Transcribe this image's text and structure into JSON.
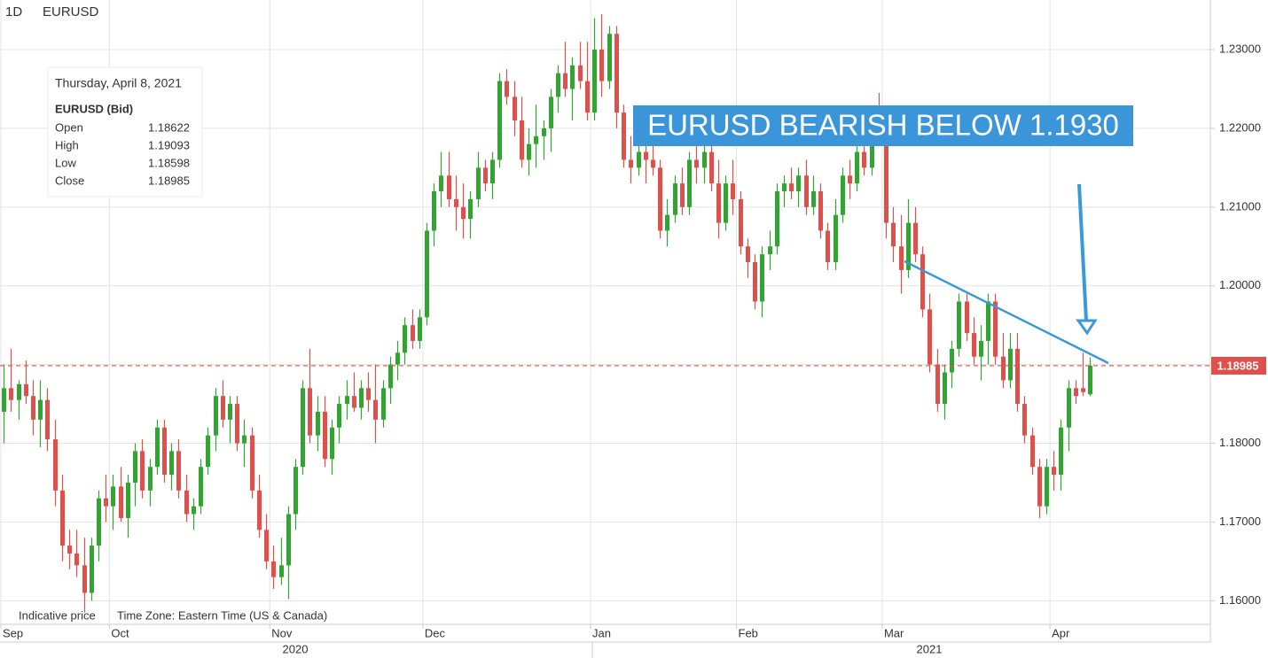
{
  "chart_data": {
    "type": "candlestick",
    "timeframe": "1D",
    "symbol": "EURUSD",
    "annotation": "EURUSD BEARISH BELOW 1.1930",
    "footer": [
      "Indicative price",
      "Time Zone: Eastern Time (US & Canada)"
    ],
    "info_box": {
      "date": "Thursday, April 8, 2021",
      "symbol": "EURUSD (Bid)",
      "rows": [
        [
          "Open",
          "1.18622"
        ],
        [
          "High",
          "1.19093"
        ],
        [
          "Low",
          "1.18598"
        ],
        [
          "Close",
          "1.18985"
        ]
      ]
    },
    "up_color": "#30a530",
    "down_color": "#e0504a",
    "ylim": [
      1.157,
      1.2363
    ],
    "yticks": [
      {
        "value": 1.16,
        "label": "1.16000"
      },
      {
        "value": 1.17,
        "label": "1.17000"
      },
      {
        "value": 1.18,
        "label": "1.18000"
      },
      {
        "value": 1.19,
        "label": "1.19000"
      },
      {
        "value": 1.2,
        "label": "1.20000"
      },
      {
        "value": 1.21,
        "label": "1.21000"
      },
      {
        "value": 1.22,
        "label": "1.22000"
      },
      {
        "value": 1.23,
        "label": "1.23000"
      }
    ],
    "xlim": [
      -0.5,
      165.5
    ],
    "xticks": [
      {
        "value": -0.5,
        "label": "Sep"
      },
      {
        "value": 14.5,
        "label": "Oct"
      },
      {
        "value": 36.5,
        "label": "Nov"
      },
      {
        "value": 57.5,
        "label": "Dec"
      },
      {
        "value": 80.5,
        "label": "Jan"
      },
      {
        "value": 100.5,
        "label": "Feb"
      },
      {
        "value": 120.5,
        "label": "Mar"
      },
      {
        "value": 143.5,
        "label": "Apr"
      }
    ],
    "years": [
      "2020",
      "2021"
    ],
    "grid": true,
    "candles": [
      [
        1.184,
        1.19,
        1.18,
        1.187
      ],
      [
        1.187,
        1.192,
        1.184,
        1.1855
      ],
      [
        1.1855,
        1.188,
        1.183,
        1.1875
      ],
      [
        1.1875,
        1.1905,
        1.185,
        1.186
      ],
      [
        1.186,
        1.188,
        1.181,
        1.183
      ],
      [
        1.183,
        1.188,
        1.1795,
        1.1855
      ],
      [
        1.1855,
        1.187,
        1.179,
        1.1805
      ],
      [
        1.1805,
        1.183,
        1.172,
        1.174
      ],
      [
        1.174,
        1.176,
        1.165,
        1.167
      ],
      [
        1.167,
        1.169,
        1.164,
        1.166
      ],
      [
        1.166,
        1.169,
        1.163,
        1.1645
      ],
      [
        1.1645,
        1.168,
        1.1585,
        1.161
      ],
      [
        1.161,
        1.168,
        1.16,
        1.167
      ],
      [
        1.167,
        1.174,
        1.165,
        1.173
      ],
      [
        1.173,
        1.176,
        1.17,
        1.172
      ],
      [
        1.172,
        1.176,
        1.169,
        1.1745
      ],
      [
        1.1745,
        1.177,
        1.17,
        1.1705
      ],
      [
        1.1705,
        1.176,
        1.168,
        1.175
      ],
      [
        1.175,
        1.18,
        1.172,
        1.179
      ],
      [
        1.179,
        1.1805,
        1.173,
        1.174
      ],
      [
        1.174,
        1.178,
        1.172,
        1.177
      ],
      [
        1.177,
        1.183,
        1.176,
        1.182
      ],
      [
        1.182,
        1.183,
        1.175,
        1.176
      ],
      [
        1.176,
        1.18,
        1.174,
        1.179
      ],
      [
        1.179,
        1.1805,
        1.173,
        1.174
      ],
      [
        1.174,
        1.176,
        1.17,
        1.171
      ],
      [
        1.171,
        1.173,
        1.169,
        1.172
      ],
      [
        1.172,
        1.178,
        1.171,
        1.177
      ],
      [
        1.177,
        1.182,
        1.176,
        1.181
      ],
      [
        1.181,
        1.187,
        1.179,
        1.186
      ],
      [
        1.186,
        1.188,
        1.182,
        1.183
      ],
      [
        1.183,
        1.186,
        1.18,
        1.185
      ],
      [
        1.185,
        1.186,
        1.179,
        1.18
      ],
      [
        1.18,
        1.183,
        1.177,
        1.181
      ],
      [
        1.181,
        1.182,
        1.173,
        1.174
      ],
      [
        1.174,
        1.176,
        1.168,
        1.169
      ],
      [
        1.169,
        1.171,
        1.164,
        1.165
      ],
      [
        1.165,
        1.167,
        1.1615,
        1.163
      ],
      [
        1.163,
        1.168,
        1.162,
        1.1645
      ],
      [
        1.1645,
        1.172,
        1.1602,
        1.171
      ],
      [
        1.171,
        1.178,
        1.169,
        1.177
      ],
      [
        1.177,
        1.188,
        1.176,
        1.187
      ],
      [
        1.187,
        1.192,
        1.18,
        1.181
      ],
      [
        1.181,
        1.186,
        1.179,
        1.184
      ],
      [
        1.184,
        1.186,
        1.177,
        1.178
      ],
      [
        1.178,
        1.183,
        1.176,
        1.182
      ],
      [
        1.182,
        1.186,
        1.18,
        1.185
      ],
      [
        1.185,
        1.188,
        1.183,
        1.186
      ],
      [
        1.186,
        1.189,
        1.184,
        1.1845
      ],
      [
        1.1845,
        1.188,
        1.183,
        1.187
      ],
      [
        1.187,
        1.189,
        1.184,
        1.1855
      ],
      [
        1.1855,
        1.19,
        1.18,
        1.183
      ],
      [
        1.183,
        1.188,
        1.182,
        1.187
      ],
      [
        1.187,
        1.191,
        1.185,
        1.19
      ],
      [
        1.19,
        1.193,
        1.188,
        1.1915
      ],
      [
        1.1915,
        1.196,
        1.19,
        1.195
      ],
      [
        1.195,
        1.197,
        1.192,
        1.193
      ],
      [
        1.193,
        1.197,
        1.192,
        1.196
      ],
      [
        1.196,
        1.208,
        1.195,
        1.207
      ],
      [
        1.207,
        1.213,
        1.205,
        1.212
      ],
      [
        1.212,
        1.217,
        1.21,
        1.214
      ],
      [
        1.214,
        1.217,
        1.21,
        1.211
      ],
      [
        1.211,
        1.214,
        1.207,
        1.21
      ],
      [
        1.21,
        1.213,
        1.206,
        1.2085
      ],
      [
        1.2085,
        1.212,
        1.206,
        1.211
      ],
      [
        1.211,
        1.217,
        1.21,
        1.215
      ],
      [
        1.215,
        1.216,
        1.212,
        1.213
      ],
      [
        1.213,
        1.217,
        1.211,
        1.216
      ],
      [
        1.216,
        1.227,
        1.215,
        1.226
      ],
      [
        1.226,
        1.2275,
        1.223,
        1.224
      ],
      [
        1.224,
        1.226,
        1.219,
        1.221
      ],
      [
        1.221,
        1.224,
        1.215,
        1.216
      ],
      [
        1.216,
        1.22,
        1.214,
        1.218
      ],
      [
        1.218,
        1.223,
        1.215,
        1.219
      ],
      [
        1.219,
        1.221,
        1.216,
        1.22
      ],
      [
        1.22,
        1.225,
        1.217,
        1.224
      ],
      [
        1.224,
        1.228,
        1.222,
        1.227
      ],
      [
        1.227,
        1.231,
        1.224,
        1.225
      ],
      [
        1.225,
        1.229,
        1.221,
        1.228
      ],
      [
        1.228,
        1.231,
        1.225,
        1.226
      ],
      [
        1.226,
        1.231,
        1.221,
        1.222
      ],
      [
        1.222,
        1.234,
        1.221,
        1.23
      ],
      [
        1.23,
        1.2345,
        1.224,
        1.226
      ],
      [
        1.226,
        1.233,
        1.225,
        1.232
      ],
      [
        1.232,
        1.233,
        1.22,
        1.222
      ],
      [
        1.222,
        1.223,
        1.215,
        1.216
      ],
      [
        1.216,
        1.219,
        1.213,
        1.215
      ],
      [
        1.215,
        1.219,
        1.214,
        1.217
      ],
      [
        1.217,
        1.219,
        1.213,
        1.216
      ],
      [
        1.216,
        1.218,
        1.214,
        1.215
      ],
      [
        1.215,
        1.216,
        1.206,
        1.207
      ],
      [
        1.207,
        1.211,
        1.205,
        1.209
      ],
      [
        1.209,
        1.214,
        1.208,
        1.213
      ],
      [
        1.213,
        1.215,
        1.209,
        1.21
      ],
      [
        1.21,
        1.217,
        1.209,
        1.216
      ],
      [
        1.216,
        1.218,
        1.213,
        1.215
      ],
      [
        1.215,
        1.218,
        1.213,
        1.217
      ],
      [
        1.217,
        1.218,
        1.212,
        1.213
      ],
      [
        1.213,
        1.216,
        1.206,
        1.208
      ],
      [
        1.208,
        1.214,
        1.207,
        1.213
      ],
      [
        1.213,
        1.216,
        1.209,
        1.211
      ],
      [
        1.211,
        1.212,
        1.204,
        1.205
      ],
      [
        1.205,
        1.206,
        1.201,
        1.203
      ],
      [
        1.203,
        1.204,
        1.197,
        1.198
      ],
      [
        1.198,
        1.205,
        1.196,
        1.204
      ],
      [
        1.204,
        1.207,
        1.202,
        1.205
      ],
      [
        1.205,
        1.213,
        1.204,
        1.212
      ],
      [
        1.212,
        1.214,
        1.21,
        1.213
      ],
      [
        1.213,
        1.215,
        1.211,
        1.212
      ],
      [
        1.212,
        1.215,
        1.21,
        1.214
      ],
      [
        1.214,
        1.216,
        1.209,
        1.21
      ],
      [
        1.21,
        1.214,
        1.209,
        1.212
      ],
      [
        1.212,
        1.213,
        1.206,
        1.207
      ],
      [
        1.207,
        1.208,
        1.202,
        1.203
      ],
      [
        1.203,
        1.211,
        1.202,
        1.209
      ],
      [
        1.209,
        1.215,
        1.208,
        1.214
      ],
      [
        1.214,
        1.216,
        1.211,
        1.213
      ],
      [
        1.213,
        1.218,
        1.212,
        1.217
      ],
      [
        1.217,
        1.22,
        1.214,
        1.215
      ],
      [
        1.215,
        1.222,
        1.214,
        1.221
      ],
      [
        1.221,
        1.2245,
        1.218,
        1.219
      ],
      [
        1.219,
        1.22,
        1.206,
        1.208
      ],
      [
        1.208,
        1.21,
        1.203,
        1.205
      ],
      [
        1.205,
        1.209,
        1.199,
        1.202
      ],
      [
        1.202,
        1.211,
        1.201,
        1.208
      ],
      [
        1.208,
        1.21,
        1.203,
        1.204
      ],
      [
        1.204,
        1.205,
        1.196,
        1.197
      ],
      [
        1.197,
        1.199,
        1.189,
        1.19
      ],
      [
        1.19,
        1.192,
        1.184,
        1.185
      ],
      [
        1.185,
        1.19,
        1.183,
        1.189
      ],
      [
        1.189,
        1.193,
        1.187,
        1.192
      ],
      [
        1.192,
        1.199,
        1.191,
        1.198
      ],
      [
        1.198,
        1.199,
        1.193,
        1.194
      ],
      [
        1.194,
        1.196,
        1.19,
        1.191
      ],
      [
        1.191,
        1.195,
        1.188,
        1.193
      ],
      [
        1.193,
        1.199,
        1.19,
        1.198
      ],
      [
        1.198,
        1.199,
        1.19,
        1.191
      ],
      [
        1.191,
        1.194,
        1.187,
        1.188
      ],
      [
        1.188,
        1.194,
        1.187,
        1.192
      ],
      [
        1.192,
        1.194,
        1.184,
        1.185
      ],
      [
        1.185,
        1.186,
        1.18,
        1.181
      ],
      [
        1.181,
        1.182,
        1.176,
        1.177
      ],
      [
        1.177,
        1.178,
        1.1705,
        1.172
      ],
      [
        1.172,
        1.178,
        1.171,
        1.177
      ],
      [
        1.177,
        1.179,
        1.174,
        1.176
      ],
      [
        1.176,
        1.183,
        1.174,
        1.182
      ],
      [
        1.182,
        1.188,
        1.179,
        1.187
      ],
      [
        1.187,
        1.188,
        1.185,
        1.186
      ],
      [
        1.187,
        1.1915,
        1.186,
        1.1865
      ],
      [
        1.18622,
        1.19093,
        1.18598,
        1.18985
      ]
    ]
  }
}
